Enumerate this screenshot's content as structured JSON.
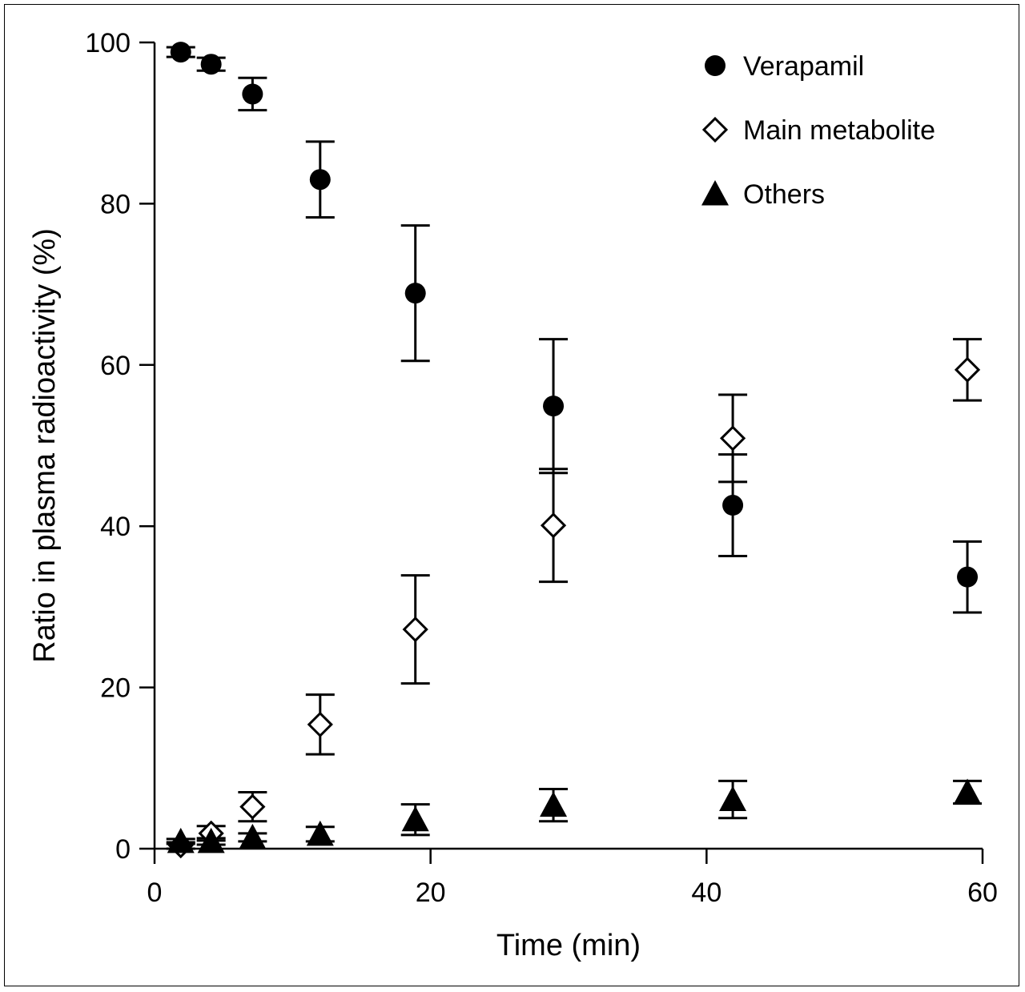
{
  "chart_data": {
    "type": "scatter",
    "title": "",
    "xlabel": "Time (min)",
    "ylabel": "Ratio in plasma radioactivity (%)",
    "xlim": [
      0,
      60
    ],
    "ylim": [
      0,
      100
    ],
    "xticks": [
      0,
      20,
      40,
      60
    ],
    "yticks": [
      0,
      20,
      40,
      60,
      80,
      100
    ],
    "grid": false,
    "legend_position": "top-right",
    "series": [
      {
        "name": "Verapamil",
        "marker": "filled-circle",
        "points": [
          {
            "x": 1.9,
            "y": 98.8,
            "err": 0.6
          },
          {
            "x": 4.1,
            "y": 97.3,
            "err": 0.8
          },
          {
            "x": 7.1,
            "y": 93.6,
            "err": 2.0
          },
          {
            "x": 12.0,
            "y": 83.0,
            "err": 4.7
          },
          {
            "x": 18.9,
            "y": 68.9,
            "err": 8.4
          },
          {
            "x": 28.9,
            "y": 54.9,
            "err": 8.3
          },
          {
            "x": 41.9,
            "y": 42.6,
            "err": 6.3
          },
          {
            "x": 58.9,
            "y": 33.7,
            "err": 4.4
          }
        ]
      },
      {
        "name": "Main metabolite",
        "marker": "open-diamond",
        "points": [
          {
            "x": 1.9,
            "y": 0.4,
            "err": 0.4
          },
          {
            "x": 4.1,
            "y": 1.9,
            "err": 0.9
          },
          {
            "x": 7.1,
            "y": 5.2,
            "err": 1.8
          },
          {
            "x": 12.0,
            "y": 15.4,
            "err": 3.7
          },
          {
            "x": 18.9,
            "y": 27.2,
            "err": 6.7
          },
          {
            "x": 28.9,
            "y": 40.1,
            "err": 7.0
          },
          {
            "x": 41.9,
            "y": 50.9,
            "err": 5.4
          },
          {
            "x": 58.9,
            "y": 59.4,
            "err": 3.8
          }
        ]
      },
      {
        "name": "Others",
        "marker": "filled-triangle",
        "points": [
          {
            "x": 1.9,
            "y": 0.9,
            "err": 0.3
          },
          {
            "x": 4.1,
            "y": 0.9,
            "err": 0.4
          },
          {
            "x": 7.1,
            "y": 1.4,
            "err": 0.5
          },
          {
            "x": 12.0,
            "y": 1.8,
            "err": 0.9
          },
          {
            "x": 18.9,
            "y": 3.6,
            "err": 1.9
          },
          {
            "x": 28.9,
            "y": 5.4,
            "err": 2.0
          },
          {
            "x": 41.9,
            "y": 6.1,
            "err": 2.3
          },
          {
            "x": 58.9,
            "y": 7.0,
            "err": 1.4
          }
        ]
      }
    ]
  }
}
